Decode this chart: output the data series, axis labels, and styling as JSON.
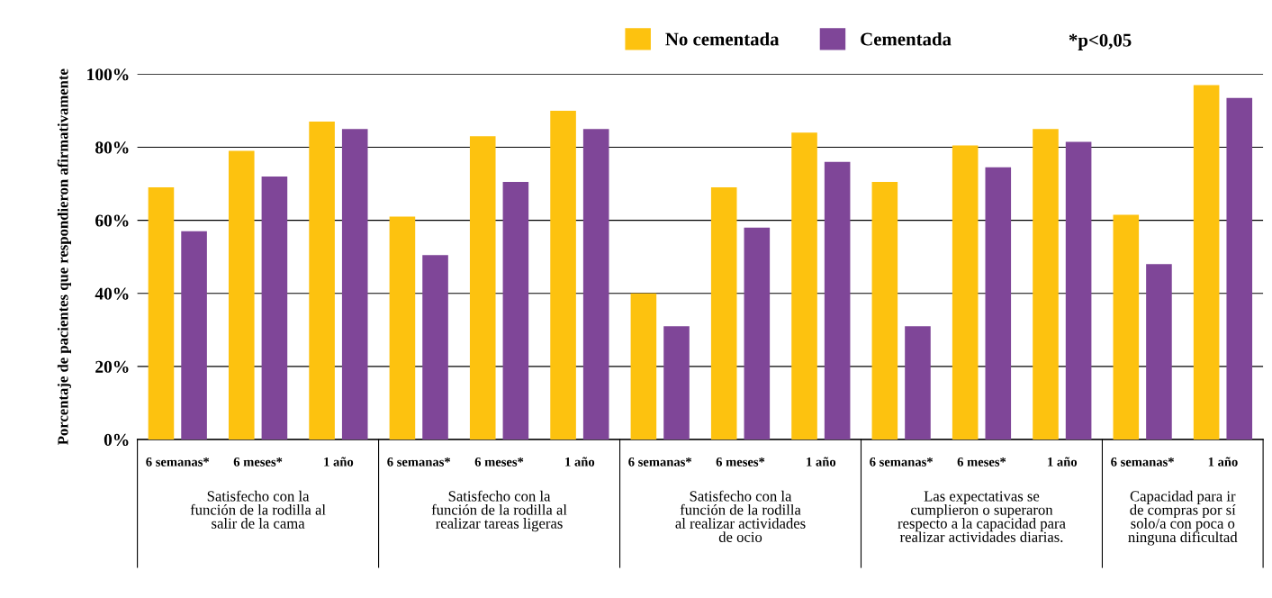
{
  "chart_data": {
    "type": "bar",
    "ylabel": "Porcentaje de pacientes que respondieron afirmativamente",
    "categories": [
      "6 semanas*",
      "6 meses*",
      "1 año",
      "6 semanas*",
      "6 meses*",
      "1 año",
      "6 semanas*",
      "6 meses*",
      "1 año",
      "6 semanas*",
      "6 meses*",
      "1 año",
      "6 semanas*",
      "1 año"
    ],
    "series": [
      {
        "name": "No cementada",
        "color": "#fdc20f",
        "values": [
          69,
          79,
          87,
          61,
          83,
          90,
          40,
          69,
          84,
          70.5,
          80.5,
          85,
          61.5,
          97
        ]
      },
      {
        "name": "Cementada",
        "color": "#7f4698",
        "values": [
          57,
          72,
          85,
          50.5,
          70.5,
          85,
          31,
          58,
          76,
          31,
          74.5,
          81.5,
          48,
          93.5
        ]
      }
    ],
    "ylim": [
      0,
      100
    ],
    "yticks": [
      {
        "value": 0,
        "label": "0%"
      },
      {
        "value": 20,
        "label": "20%"
      },
      {
        "value": 40,
        "label": "40%"
      },
      {
        "value": 60,
        "label": "60%"
      },
      {
        "value": 80,
        "label": "80%"
      },
      {
        "value": 100,
        "label": "100%"
      }
    ],
    "grid": "y",
    "legend": "top",
    "annotations": [
      "Satisfecho con la\nfunción de la rodilla al\nsalir de la cama",
      "Satisfecho con la\nfunción de la rodilla al\nrealizar tareas ligeras",
      "Satisfecho con la\nfunción de la rodilla\nal realizar actividades\nde ocio",
      "Las expectativas se\ncumplieron o superaron\nrespecto a la capacidad para\nrealizar actividades diarias.",
      "Capacidad para ir\nde compras por sí\nsolo/a con poca o\nninguna dificultad",
      "*p<0,05"
    ]
  }
}
